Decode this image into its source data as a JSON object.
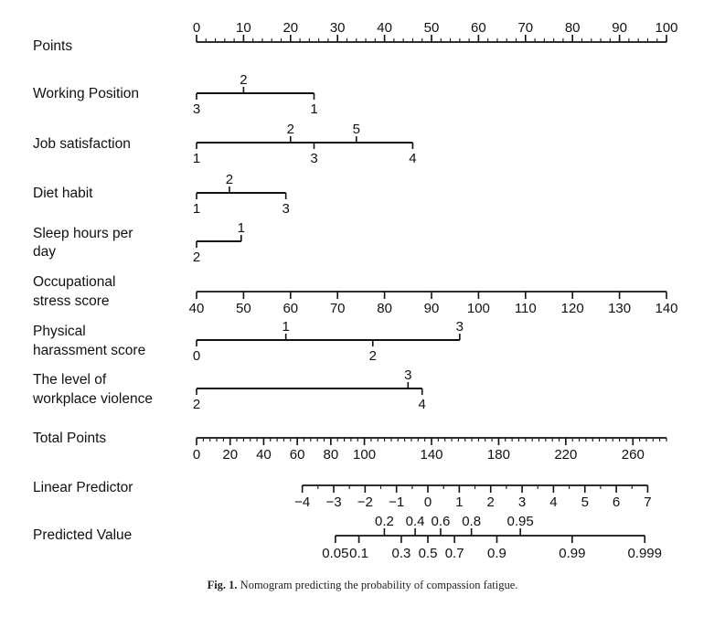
{
  "chart_data": {
    "type": "nomogram",
    "title": "",
    "rows": [
      {
        "id": "points",
        "label": [
          "Points"
        ],
        "kind": "axis",
        "range": [
          0,
          100
        ],
        "ticks": [
          0,
          10,
          20,
          30,
          40,
          50,
          60,
          70,
          80,
          90,
          100
        ],
        "minor_step": 2,
        "label_side": "above"
      },
      {
        "id": "working-position",
        "label": [
          "Working Position"
        ],
        "kind": "variable",
        "levels": [
          {
            "text": "3",
            "points": 0,
            "side": "below"
          },
          {
            "text": "2",
            "points": 10,
            "side": "above"
          },
          {
            "text": "1",
            "points": 25,
            "side": "below"
          }
        ]
      },
      {
        "id": "job-satisfaction",
        "label": [
          "Job satisfaction"
        ],
        "kind": "variable",
        "levels": [
          {
            "text": "1",
            "points": 0,
            "side": "below"
          },
          {
            "text": "2",
            "points": 20,
            "side": "above"
          },
          {
            "text": "3",
            "points": 25,
            "side": "below"
          },
          {
            "text": "5",
            "points": 34,
            "side": "above"
          },
          {
            "text": "4",
            "points": 46,
            "side": "below"
          }
        ]
      },
      {
        "id": "diet-habit",
        "label": [
          "Diet habit"
        ],
        "kind": "variable",
        "levels": [
          {
            "text": "1",
            "points": 0,
            "side": "below"
          },
          {
            "text": "2",
            "points": 7,
            "side": "above"
          },
          {
            "text": "3",
            "points": 19,
            "side": "below"
          }
        ]
      },
      {
        "id": "sleep-hours",
        "label": [
          "Sleep hours per",
          "day"
        ],
        "kind": "variable",
        "levels": [
          {
            "text": "2",
            "points": 0,
            "side": "below"
          },
          {
            "text": "1",
            "points": 9.5,
            "side": "above"
          }
        ]
      },
      {
        "id": "occupational-stress",
        "label": [
          "Occupational",
          "stress score"
        ],
        "kind": "axis",
        "range": [
          40,
          140
        ],
        "ticks": [
          40,
          50,
          60,
          70,
          80,
          90,
          100,
          110,
          120,
          130,
          140
        ],
        "points_range": [
          0,
          100
        ],
        "label_side": "below"
      },
      {
        "id": "physical-harassment",
        "label": [
          "Physical",
          "harassment score"
        ],
        "kind": "variable",
        "levels": [
          {
            "text": "0",
            "points": 0,
            "side": "below"
          },
          {
            "text": "1",
            "points": 19,
            "side": "above"
          },
          {
            "text": "2",
            "points": 37.5,
            "side": "below"
          },
          {
            "text": "3",
            "points": 56,
            "side": "above"
          }
        ]
      },
      {
        "id": "workplace-violence",
        "label": [
          "The level of",
          "workplace violence"
        ],
        "kind": "variable",
        "levels": [
          {
            "text": "2",
            "points": 0,
            "side": "below"
          },
          {
            "text": "3",
            "points": 45,
            "side": "above"
          },
          {
            "text": "4",
            "points": 48,
            "side": "below"
          }
        ]
      },
      {
        "id": "total-points",
        "label": [
          "Total Points"
        ],
        "kind": "axis",
        "range": [
          0,
          280
        ],
        "points_range": [
          0,
          100
        ],
        "ticks": [
          0,
          20,
          40,
          60,
          80,
          100,
          140,
          180,
          220,
          260
        ],
        "minor_step": 4,
        "label_side": "below"
      },
      {
        "id": "linear-predictor",
        "label": [
          "Linear Predictor"
        ],
        "kind": "axis",
        "range": [
          -4,
          7
        ],
        "points_range": [
          22.5,
          96
        ],
        "ticks": [
          -4,
          -3,
          -2,
          -1,
          0,
          1,
          2,
          3,
          4,
          5,
          6,
          7
        ],
        "tick_labels": [
          "−4",
          "−3",
          "−2",
          "−1",
          "0",
          "1",
          "2",
          "3",
          "4",
          "5",
          "6",
          "7"
        ],
        "minor_step": 0.5,
        "label_side": "below"
      },
      {
        "id": "predicted-value",
        "label": [
          "Predicted Value"
        ],
        "kind": "probability",
        "lp_range": [
          -4,
          7
        ],
        "points_range": [
          22.5,
          96
        ],
        "ticks": [
          {
            "text": "0.05",
            "value": 0.05,
            "side": "below"
          },
          {
            "text": "0.1",
            "value": 0.1,
            "side": "below"
          },
          {
            "text": "0.2",
            "value": 0.2,
            "side": "above"
          },
          {
            "text": "0.3",
            "value": 0.3,
            "side": "below"
          },
          {
            "text": "0.4",
            "value": 0.4,
            "side": "above"
          },
          {
            "text": "0.5",
            "value": 0.5,
            "side": "below"
          },
          {
            "text": "0.6",
            "value": 0.6,
            "side": "above"
          },
          {
            "text": "0.7",
            "value": 0.7,
            "side": "below"
          },
          {
            "text": "0.8",
            "value": 0.8,
            "side": "above"
          },
          {
            "text": "0.9",
            "value": 0.9,
            "side": "below"
          },
          {
            "text": "0.95",
            "value": 0.95,
            "side": "above"
          },
          {
            "text": "0.99",
            "value": 0.99,
            "side": "below"
          },
          {
            "text": "0.999",
            "value": 0.999,
            "side": "below"
          }
        ]
      }
    ]
  },
  "caption": {
    "label": "Fig. 1.",
    "text": "Nomogram predicting the probability of compassion fatigue."
  }
}
